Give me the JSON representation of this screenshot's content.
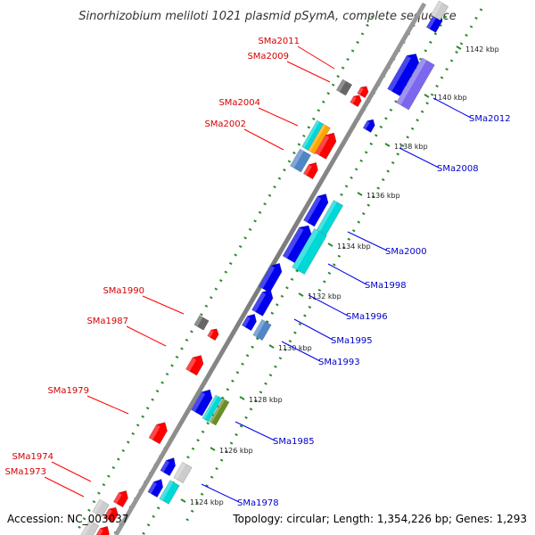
{
  "title": "Sinorhizobium meliloti 1021 plasmid pSymA, complete sequence",
  "footer": {
    "accession": "Accession: NC_003037",
    "summary": "Topology: circular; Length: 1,354,226 bp; Genes: 1,293"
  },
  "ticks": [
    "1124 kbp",
    "1126 kbp",
    "1128 kbp",
    "1130 kbp",
    "1132 kbp",
    "1134 kbp",
    "1136 kbp",
    "1138 kbp",
    "1140 kbp",
    "1142 kbp"
  ],
  "genes_left": [
    "SMa2011",
    "SMa2009",
    "SMa2004",
    "SMa2002",
    "SMa1990",
    "SMa1987",
    "SMa1979",
    "SMa1974",
    "SMa1973"
  ],
  "genes_right": [
    "SMa2012",
    "SMa2008",
    "SMa2000",
    "SMa1998",
    "SMa1996",
    "SMa1995",
    "SMa1993",
    "SMa1985",
    "SMa1978"
  ],
  "colors": {
    "forward_label": "#d40000",
    "reverse_label": "#0000c8",
    "red": "#ff0000",
    "blue": "#0000ee",
    "cyan": "#00d8d8",
    "gray": "#666666",
    "light_gray": "#cccccc",
    "steel_blue": "#4f86c6",
    "lavender": "#7b68ee",
    "orange": "#ffa500",
    "olive": "#6b8e23",
    "backbone": "#888888",
    "dots": "#2e8b2e"
  }
}
